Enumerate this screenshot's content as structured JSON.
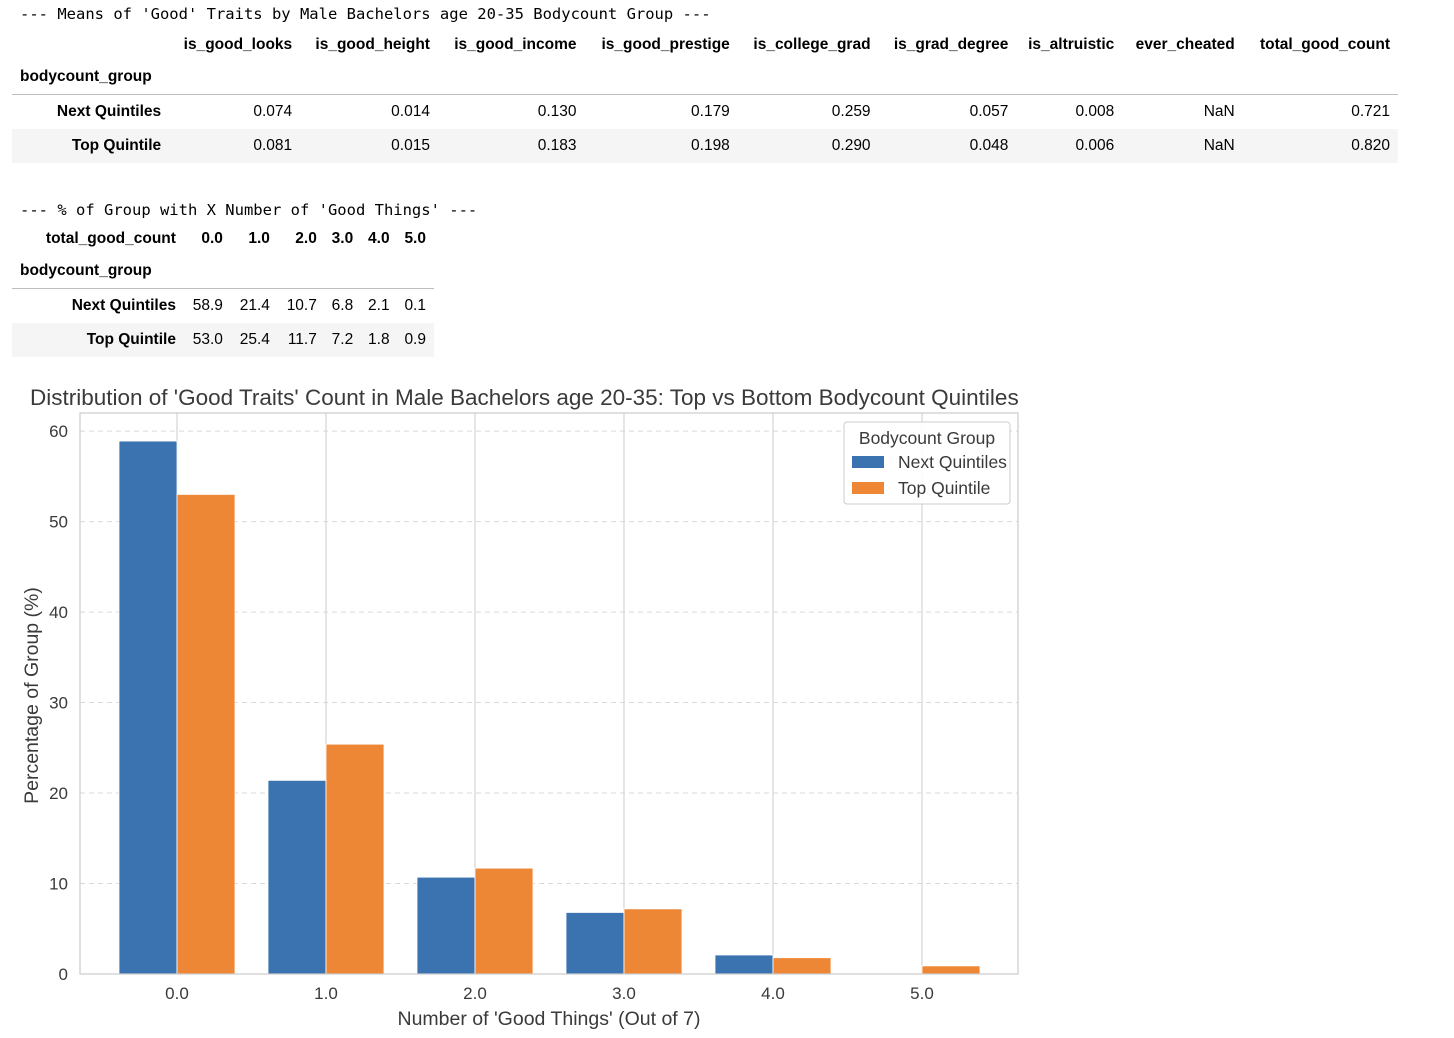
{
  "means_header": "--- Means of 'Good' Traits by Male Bachelors age 20-35 Bodycount Group ---",
  "means_table": {
    "columns": [
      "is_good_looks",
      "is_good_height",
      "is_good_income",
      "is_good_prestige",
      "is_college_grad",
      "is_grad_degree",
      "is_altruistic",
      "ever_cheated",
      "total_good_count"
    ],
    "index_name": "bodycount_group",
    "rows": [
      {
        "label": "Next Quintiles",
        "values": [
          "0.074",
          "0.014",
          "0.130",
          "0.179",
          "0.259",
          "0.057",
          "0.008",
          "NaN",
          "0.721"
        ]
      },
      {
        "label": "Top Quintile",
        "values": [
          "0.081",
          "0.015",
          "0.183",
          "0.198",
          "0.290",
          "0.048",
          "0.006",
          "NaN",
          "0.820"
        ]
      }
    ]
  },
  "pct_header": "--- % of Group with X Number of 'Good Things' ---",
  "pct_table": {
    "columns_name": "total_good_count",
    "columns": [
      "0.0",
      "1.0",
      "2.0",
      "3.0",
      "4.0",
      "5.0"
    ],
    "index_name": "bodycount_group",
    "rows": [
      {
        "label": "Next Quintiles",
        "values": [
          "58.9",
          "21.4",
          "10.7",
          "6.8",
          "2.1",
          "0.1"
        ]
      },
      {
        "label": "Top Quintile",
        "values": [
          "53.0",
          "25.4",
          "11.7",
          "7.2",
          "1.8",
          "0.9"
        ]
      }
    ]
  },
  "chart_data": {
    "type": "bar",
    "title": "Distribution of 'Good Traits' Count in Male Bachelors age 20-35: Top vs Bottom Bodycount Quintiles",
    "xlabel": "Number of 'Good Things' (Out of 7)",
    "ylabel": "Percentage of Group (%)",
    "categories": [
      "0.0",
      "1.0",
      "2.0",
      "3.0",
      "4.0",
      "5.0"
    ],
    "series": [
      {
        "name": "Next Quintiles",
        "values": [
          58.9,
          21.4,
          10.7,
          6.8,
          2.1,
          0.1
        ],
        "color": "#3b73b0"
      },
      {
        "name": "Top Quintile",
        "values": [
          53.0,
          25.4,
          11.7,
          7.2,
          1.8,
          0.9
        ],
        "color": "#ee8735"
      }
    ],
    "ylim": [
      0,
      62
    ],
    "yticks": [
      0,
      10,
      20,
      30,
      40,
      50,
      60
    ],
    "grid": true,
    "legend_title": "Bodycount Group",
    "legend_position": "top-right"
  }
}
